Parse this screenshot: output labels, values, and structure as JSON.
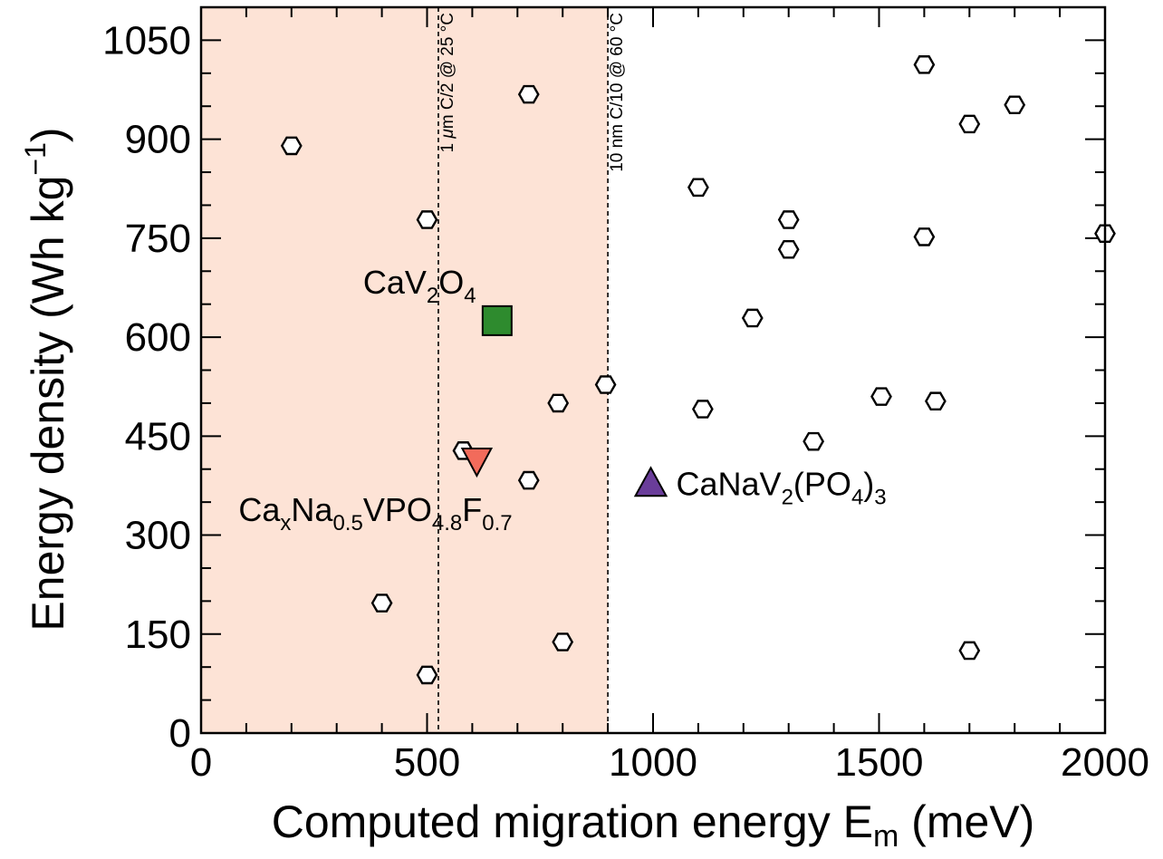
{
  "chart_data": {
    "type": "scatter",
    "xlabel": {
      "main": "Computed migration energy E",
      "sub": "m",
      "unit": " (meV)"
    },
    "ylabel": {
      "main": "Energy density (Wh kg",
      "sup": "−1",
      "close": ")"
    },
    "xlim": [
      0,
      2000
    ],
    "ylim": [
      0,
      1100
    ],
    "xticks": [
      0,
      500,
      1000,
      1500,
      2000
    ],
    "yticks": [
      0,
      150,
      300,
      450,
      600,
      750,
      900,
      1050
    ],
    "shaded_region": {
      "x": [
        0,
        900
      ],
      "color": "#fde3d6"
    },
    "reference_lines": [
      {
        "x": 525,
        "label_parts": [
          {
            "t": "1 "
          },
          {
            "t": "μ",
            "italic": true
          },
          {
            "t": "m C/2 @ 25 °C"
          }
        ]
      },
      {
        "x": 900,
        "label_parts": [
          {
            "t": "10 nm C/10 @ 60 °C"
          }
        ]
      }
    ],
    "hexagon_points": [
      [
        200,
        890
      ],
      [
        500,
        778
      ],
      [
        500,
        88
      ],
      [
        400,
        197
      ],
      [
        725,
        968
      ],
      [
        580,
        428
      ],
      [
        725,
        383
      ],
      [
        790,
        500
      ],
      [
        800,
        138
      ],
      [
        895,
        528
      ],
      [
        1100,
        827
      ],
      [
        1110,
        491
      ],
      [
        1220,
        629
      ],
      [
        1300,
        778
      ],
      [
        1300,
        733
      ],
      [
        1355,
        442
      ],
      [
        1505,
        510
      ],
      [
        1600,
        1013
      ],
      [
        1600,
        752
      ],
      [
        1625,
        503
      ],
      [
        1700,
        923
      ],
      [
        1700,
        125
      ],
      [
        1800,
        952
      ],
      [
        2000,
        757
      ]
    ],
    "highlighted": [
      {
        "compound": "CaV2O4",
        "marker": "square",
        "color": "#2e8b2e",
        "x": 655,
        "y": 625,
        "label_parts": [
          {
            "t": "CaV"
          },
          {
            "t": "2",
            "sub": true
          },
          {
            "t": "O"
          },
          {
            "t": "4",
            "sub": true
          }
        ]
      },
      {
        "compound": "CaxNa0.5VPO4.8F0.7",
        "marker": "triangle-down",
        "color": "#f26b5b",
        "x": 610,
        "y": 412,
        "label_parts": [
          {
            "t": "Ca"
          },
          {
            "t": "x",
            "sub": true
          },
          {
            "t": "Na"
          },
          {
            "t": "0.5",
            "sub": true
          },
          {
            "t": "VPO"
          },
          {
            "t": "4.8",
            "sub": true
          },
          {
            "t": "F"
          },
          {
            "t": "0.7",
            "sub": true
          }
        ]
      },
      {
        "compound": "CaNaV2(PO4)3",
        "marker": "triangle-up",
        "color": "#6a3d9a",
        "x": 995,
        "y": 380,
        "label_parts": [
          {
            "t": "CaNaV"
          },
          {
            "t": "2",
            "sub": true
          },
          {
            "t": "(PO"
          },
          {
            "t": "4",
            "sub": true
          },
          {
            "t": ")"
          },
          {
            "t": "3",
            "sub": true
          }
        ]
      }
    ],
    "grid": false,
    "legend": "none"
  }
}
